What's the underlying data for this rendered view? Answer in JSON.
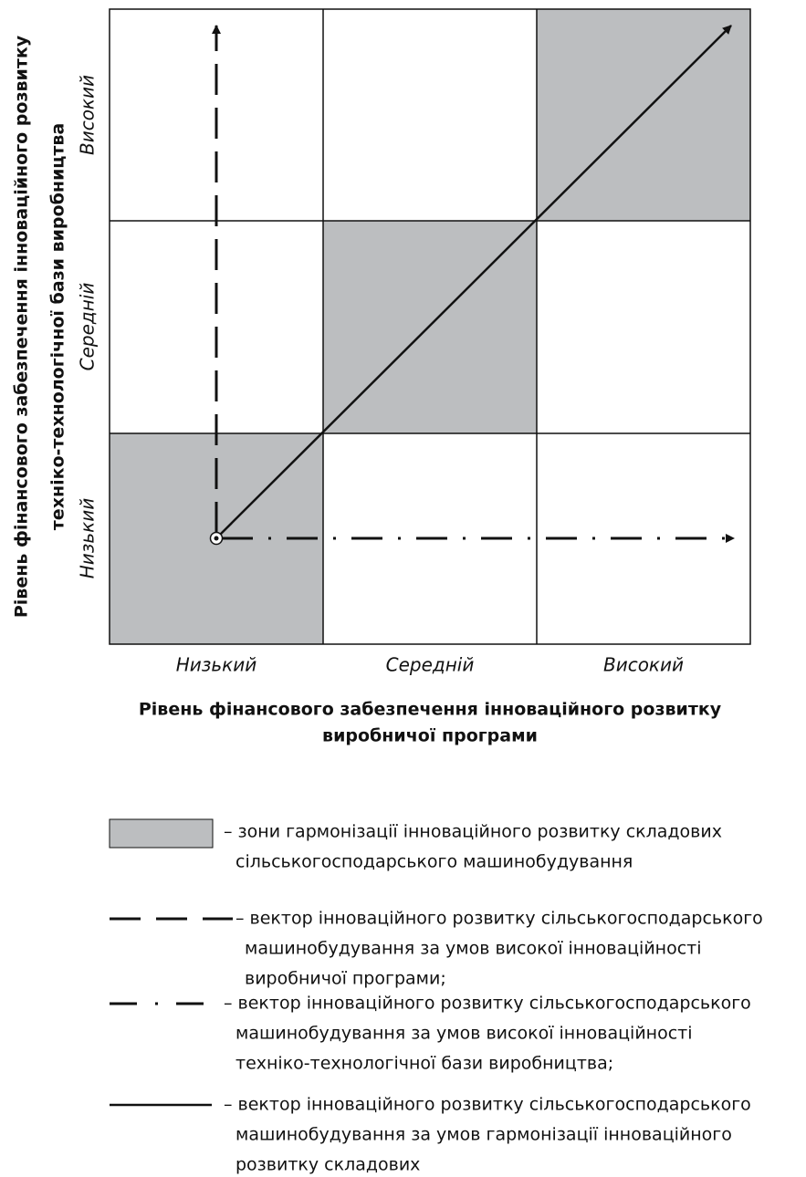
{
  "y_axis_title": [
    "Рівень фінансового забезпечення інноваційного розвитку",
    "техніко-технологічної бази виробництва"
  ],
  "x_axis_title": [
    "Рівень фінансового забезпечення інноваційного розвитку",
    "виробничої програми"
  ],
  "x_levels": [
    "Низький",
    "Середній",
    "Високий"
  ],
  "y_levels": [
    "Низький",
    "Середній",
    "Високий"
  ],
  "legend": [
    {
      "lines": [
        "– зони гармонізації інноваційного розвитку складових",
        "сільськогосподарського машинобудування"
      ]
    },
    {
      "lines": [
        "– вектор інноваційного розвитку сільськогосподарського",
        "машинобудування за умов високої інноваційності",
        "виробничої програми;"
      ]
    },
    {
      "lines": [
        "– вектор інноваційного розвитку сільськогосподарського",
        "машинобудування за умов високої інноваційності",
        "техніко-технологічної бази виробництва;"
      ]
    },
    {
      "lines": [
        "– вектор інноваційного розвитку сільськогосподарського",
        "машинобудування за умов гармонізації інноваційного",
        "розвитку складових"
      ]
    }
  ]
}
